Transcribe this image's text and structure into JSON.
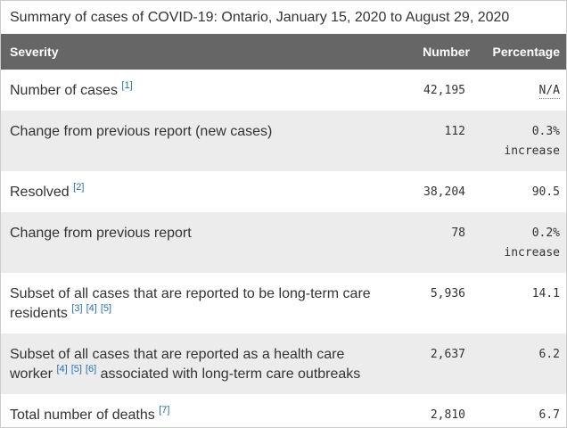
{
  "title": "Summary of cases of COVID-19: Ontario, January 15, 2020 to August 29, 2020",
  "colors": {
    "header_bg": "#666666",
    "header_text": "#ffffff",
    "shaded_row_bg": "#ececec",
    "body_text": "#333333",
    "footnote_link": "#2572b4",
    "border": "#cccccc"
  },
  "table": {
    "columns": [
      "Severity",
      "Number",
      "Percentage"
    ],
    "rows": [
      {
        "shaded": false,
        "severity": [
          {
            "text": "Number of cases "
          },
          {
            "footnote": "[1]"
          }
        ],
        "number": "42,195",
        "percentage": "N/A",
        "percentage_dotted": true
      },
      {
        "shaded": true,
        "severity": [
          {
            "text": "Change from previous report (new cases)"
          }
        ],
        "number": "112",
        "percentage": "0.3% increase",
        "percentage_dotted": false
      },
      {
        "shaded": false,
        "severity": [
          {
            "text": "Resolved "
          },
          {
            "footnote": "[2]"
          }
        ],
        "number": "38,204",
        "percentage": "90.5",
        "percentage_dotted": false
      },
      {
        "shaded": true,
        "severity": [
          {
            "text": "Change from previous report"
          }
        ],
        "number": "78",
        "percentage": "0.2% increase",
        "percentage_dotted": false
      },
      {
        "shaded": false,
        "severity": [
          {
            "text": "Subset of all cases that are reported to be long-term care residents "
          },
          {
            "footnote": "[3]"
          },
          {
            "footnote": "[4]"
          },
          {
            "footnote": "[5]"
          }
        ],
        "number": "5,936",
        "percentage": "14.1",
        "percentage_dotted": false
      },
      {
        "shaded": true,
        "severity": [
          {
            "text": "Subset of all cases that are reported as a health care worker "
          },
          {
            "footnote": "[4]"
          },
          {
            "footnote": "[5]"
          },
          {
            "footnote": "[6]"
          },
          {
            "text": " associated with long-term care outbreaks"
          }
        ],
        "number": "2,637",
        "percentage": "6.2",
        "percentage_dotted": false
      },
      {
        "shaded": false,
        "severity": [
          {
            "text": "Total number of deaths "
          },
          {
            "footnote": "[7]"
          }
        ],
        "number": "2,810",
        "percentage": "6.7",
        "percentage_dotted": false
      }
    ]
  },
  "chart_data": {
    "type": "table",
    "title": "Summary of cases of COVID-19: Ontario, January 15, 2020 to August 29, 2020",
    "columns": [
      "Severity",
      "Number",
      "Percentage"
    ],
    "rows": [
      [
        "Number of cases [1]",
        "42,195",
        "N/A"
      ],
      [
        "Change from previous report (new cases)",
        "112",
        "0.3% increase"
      ],
      [
        "Resolved [2]",
        "38,204",
        "90.5"
      ],
      [
        "Change from previous report",
        "78",
        "0.2% increase"
      ],
      [
        "Subset of all cases that are reported to be long-term care residents [3] [4] [5]",
        "5,936",
        "14.1"
      ],
      [
        "Subset of all cases that are reported as a health care worker [4] [5] [6] associated with long-term care outbreaks",
        "2,637",
        "6.2"
      ],
      [
        "Total number of deaths [7]",
        "2,810",
        "6.7"
      ]
    ]
  }
}
